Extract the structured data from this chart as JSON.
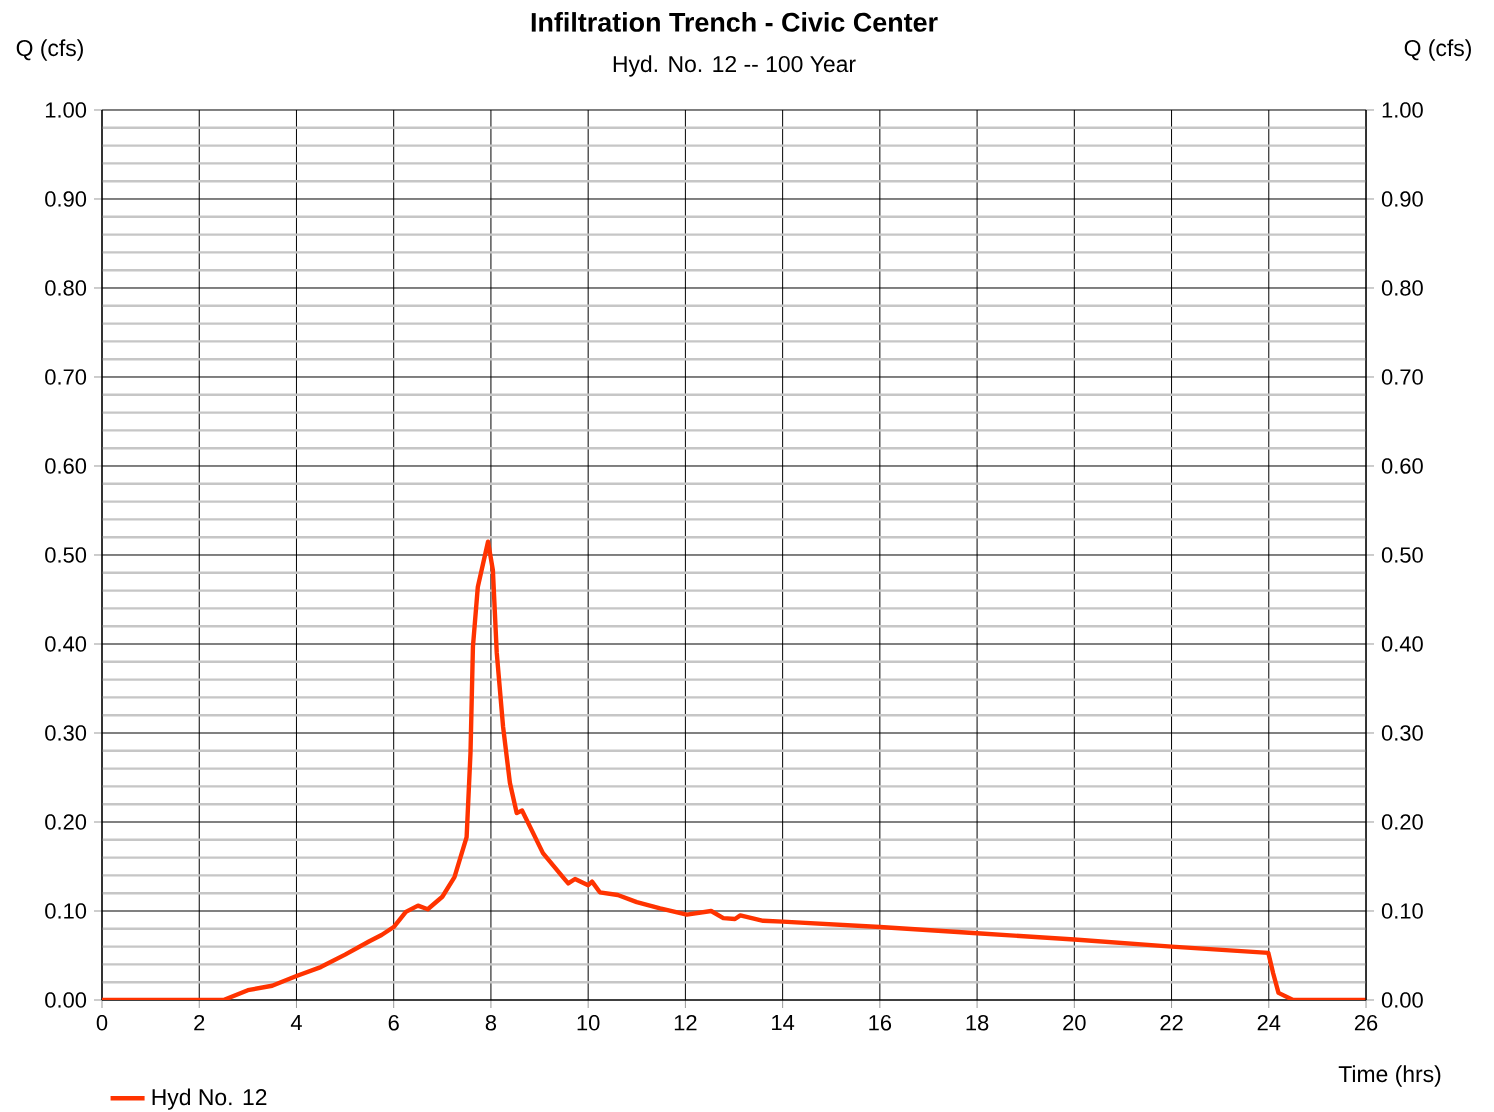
{
  "chart_data": {
    "type": "line",
    "title": "Infiltration Trench - Civic Center",
    "subtitle": "Hyd. No. 12 -- 100 Year",
    "xlabel": "Time (hrs)",
    "ylabel": "Q (cfs)",
    "y2label": "Q (cfs)",
    "x": [
      0,
      2.5,
      3.0,
      3.5,
      4.0,
      4.5,
      5.0,
      5.5,
      5.75,
      6.0,
      6.25,
      6.5,
      6.7,
      7.0,
      7.25,
      7.5,
      7.58,
      7.63,
      7.73,
      7.94,
      8.04,
      8.12,
      8.25,
      8.39,
      8.53,
      8.64,
      9.07,
      9.48,
      9.59,
      9.73,
      10.0,
      10.08,
      10.24,
      10.61,
      11.0,
      11.48,
      12.03,
      12.53,
      12.78,
      13.02,
      13.13,
      13.6,
      14.0,
      16,
      18,
      20,
      22,
      23.99,
      24.09,
      24.2,
      24.5,
      26
    ],
    "series": [
      {
        "name": "Hyd No. 12",
        "color": "#ff3300",
        "values": [
          0,
          0,
          0.011,
          0.016,
          0.027,
          0.037,
          0.051,
          0.066,
          0.073,
          0.082,
          0.099,
          0.106,
          0.102,
          0.116,
          0.138,
          0.183,
          0.278,
          0.397,
          0.464,
          0.515,
          0.483,
          0.39,
          0.307,
          0.244,
          0.21,
          0.213,
          0.165,
          0.138,
          0.131,
          0.136,
          0.129,
          0.133,
          0.121,
          0.118,
          0.11,
          0.103,
          0.096,
          0.1,
          0.092,
          0.091,
          0.095,
          0.089,
          0.088,
          0.082,
          0.075,
          0.068,
          0.06,
          0.053,
          0.03,
          0.008,
          0,
          0
        ]
      }
    ],
    "xlim": [
      0,
      26
    ],
    "xticks": [
      0,
      2,
      4,
      6,
      8,
      10,
      12,
      14,
      16,
      18,
      20,
      22,
      24,
      26
    ],
    "ylim": [
      0,
      1
    ],
    "yticks": [
      {
        "value": 0,
        "label": "0.00"
      },
      {
        "value": 0.1,
        "label": "0.10"
      },
      {
        "value": 0.2,
        "label": "0.20"
      },
      {
        "value": 0.3,
        "label": "0.30"
      },
      {
        "value": 0.4,
        "label": "0.40"
      },
      {
        "value": 0.5,
        "label": "0.50"
      },
      {
        "value": 0.6,
        "label": "0.60"
      },
      {
        "value": 0.7,
        "label": "0.70"
      },
      {
        "value": 0.8,
        "label": "0.80"
      },
      {
        "value": 0.9,
        "label": "0.90"
      },
      {
        "value": 1,
        "label": "1.00"
      }
    ],
    "y2lim": [
      0,
      1
    ],
    "y2ticks": [
      {
        "value": 0,
        "label": "0.00"
      },
      {
        "value": 0.1,
        "label": "0.10"
      },
      {
        "value": 0.2,
        "label": "0.20"
      },
      {
        "value": 0.3,
        "label": "0.30"
      },
      {
        "value": 0.4,
        "label": "0.40"
      },
      {
        "value": 0.5,
        "label": "0.50"
      },
      {
        "value": 0.6,
        "label": "0.60"
      },
      {
        "value": 0.7,
        "label": "0.70"
      },
      {
        "value": 0.8,
        "label": "0.80"
      },
      {
        "value": 0.9,
        "label": "0.90"
      },
      {
        "value": 1,
        "label": "1.00"
      }
    ],
    "grid": true,
    "legend": "bottom left",
    "marker": "none",
    "line_style": "solid"
  }
}
